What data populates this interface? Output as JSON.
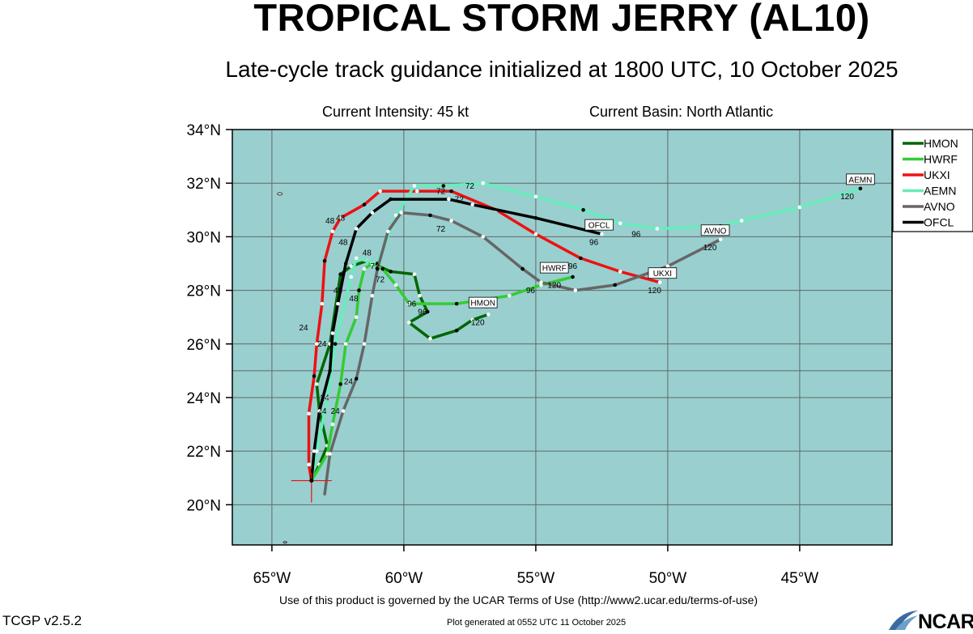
{
  "header": {
    "title": "TROPICAL STORM JERRY (AL10)",
    "subtitle": "Late-cycle track guidance initialized at 1800 UTC, 10 October 2025",
    "intensity": "Current Intensity: 45 kt",
    "basin": "Current Basin: North Atlantic"
  },
  "footer": {
    "terms": "Use of this product is governed by the UCAR Terms of Use (http://www2.ucar.edu/terms-of-use)",
    "generated": "Plot generated at 0552 UTC   11 October 2025",
    "version": "TCGP v2.5.2",
    "logo": "NCAR"
  },
  "colors": {
    "ocean": "#99cfcf",
    "land": "#ffffff",
    "grid": "#666666"
  },
  "chart_data": {
    "type": "line",
    "xlabel": "",
    "ylabel": "",
    "xlim": [
      -66.5,
      -41.5
    ],
    "ylim": [
      18.5,
      34
    ],
    "x_ticks": [
      -65,
      -60,
      -55,
      -50,
      -45
    ],
    "x_tick_labels": [
      "65°W",
      "60°W",
      "55°W",
      "50°W",
      "45°W"
    ],
    "y_ticks": [
      20,
      22,
      24,
      26,
      28,
      30,
      32,
      34
    ],
    "y_tick_labels": [
      "20°N",
      "22°N",
      "24°N",
      "26°N",
      "28°N",
      "30°N",
      "32°N",
      "34°N"
    ],
    "grid": true,
    "legend_position": "right",
    "storm_position": {
      "lon": -63.5,
      "lat": 20.9
    },
    "series": [
      {
        "name": "HMON",
        "color": "#006600",
        "points": [
          [
            -63.5,
            20.9
          ],
          [
            -63.2,
            21.5
          ],
          [
            -62.9,
            22.2
          ],
          [
            -63.2,
            23.5
          ],
          [
            -63.3,
            24.5
          ],
          [
            -62.8,
            26.0
          ],
          [
            -62.4,
            28.6
          ],
          [
            -62.0,
            28.9
          ],
          [
            -61.4,
            29.1
          ],
          [
            -60.5,
            28.7
          ],
          [
            -59.6,
            28.6
          ],
          [
            -59.4,
            27.8
          ],
          [
            -59.1,
            27.2
          ],
          [
            -59.8,
            26.8
          ],
          [
            -59.0,
            26.2
          ],
          [
            -58.0,
            26.5
          ],
          [
            -57.4,
            26.9
          ],
          [
            -56.8,
            27.1
          ]
        ],
        "labels": [
          {
            "text": "24",
            "lon": -63.0,
            "lat": 23.9
          },
          {
            "text": "48",
            "lon": -62.5,
            "lat": 27.9
          },
          {
            "text": "72",
            "lon": -60.9,
            "lat": 28.3
          },
          {
            "text": "96",
            "lon": -59.7,
            "lat": 27.4
          },
          {
            "text": "120",
            "lon": -57.2,
            "lat": 26.7
          }
        ],
        "box": {
          "text": "HMON",
          "lon": -57.0,
          "lat": 27.5
        }
      },
      {
        "name": "HWRF",
        "color": "#33cc33",
        "points": [
          [
            -63.5,
            20.9
          ],
          [
            -62.9,
            21.9
          ],
          [
            -62.7,
            23.0
          ],
          [
            -62.4,
            24.5
          ],
          [
            -62.2,
            26.0
          ],
          [
            -61.8,
            27.0
          ],
          [
            -61.7,
            28.0
          ],
          [
            -61.5,
            28.8
          ],
          [
            -61.2,
            29.0
          ],
          [
            -60.8,
            28.8
          ],
          [
            -60.3,
            28.2
          ],
          [
            -59.8,
            27.5
          ],
          [
            -58.0,
            27.5
          ],
          [
            -56.0,
            27.8
          ],
          [
            -54.8,
            28.2
          ],
          [
            -53.6,
            28.5
          ]
        ],
        "labels": [
          {
            "text": "24",
            "lon": -62.6,
            "lat": 23.4
          },
          {
            "text": "48",
            "lon": -61.9,
            "lat": 27.6
          },
          {
            "text": "72",
            "lon": -61.1,
            "lat": 28.8
          },
          {
            "text": "96",
            "lon": -59.3,
            "lat": 27.1
          },
          {
            "text": "120",
            "lon": -54.3,
            "lat": 28.1
          }
        ],
        "box": {
          "text": "HWRF",
          "lon": -54.3,
          "lat": 28.8
        }
      },
      {
        "name": "UKXI",
        "color": "#ee1111",
        "points": [
          [
            -63.5,
            20.9
          ],
          [
            -63.6,
            21.5
          ],
          [
            -63.6,
            23.4
          ],
          [
            -63.4,
            24.8
          ],
          [
            -63.3,
            26.0
          ],
          [
            -63.1,
            27.5
          ],
          [
            -63.0,
            29.1
          ],
          [
            -62.7,
            30.2
          ],
          [
            -62.4,
            30.7
          ],
          [
            -61.5,
            31.2
          ],
          [
            -60.9,
            31.7
          ],
          [
            -59.5,
            31.7
          ],
          [
            -58.2,
            31.7
          ],
          [
            -56.5,
            31.0
          ],
          [
            -55.0,
            30.1
          ],
          [
            -53.3,
            29.2
          ],
          [
            -51.8,
            28.7
          ],
          [
            -50.3,
            28.3
          ]
        ],
        "labels": [
          {
            "text": "24",
            "lon": -63.8,
            "lat": 26.5
          },
          {
            "text": "48",
            "lon": -62.8,
            "lat": 30.5
          },
          {
            "text": "72",
            "lon": -57.9,
            "lat": 31.3
          },
          {
            "text": "96",
            "lon": -53.6,
            "lat": 28.8
          },
          {
            "text": "120",
            "lon": -50.5,
            "lat": 27.9
          }
        ],
        "box": {
          "text": "UKXI",
          "lon": -50.2,
          "lat": 28.6
        }
      },
      {
        "name": "AEMN",
        "color": "#66eebb",
        "points": [
          [
            -63.5,
            20.9
          ],
          [
            -63.3,
            22.0
          ],
          [
            -62.9,
            24.0
          ],
          [
            -62.6,
            26.0
          ],
          [
            -62.0,
            28.5
          ],
          [
            -61.8,
            29.2
          ],
          [
            -61.0,
            29.0
          ],
          [
            -60.3,
            30.8
          ],
          [
            -59.6,
            31.9
          ],
          [
            -58.5,
            31.9
          ],
          [
            -57.0,
            32.0
          ],
          [
            -55.0,
            31.5
          ],
          [
            -53.2,
            31.0
          ],
          [
            -51.8,
            30.5
          ],
          [
            -50.4,
            30.3
          ],
          [
            -48.0,
            30.4
          ],
          [
            -47.2,
            30.6
          ],
          [
            -45.0,
            31.1
          ],
          [
            -42.7,
            31.8
          ]
        ],
        "labels": [
          {
            "text": "24",
            "lon": -63.1,
            "lat": 23.4
          },
          {
            "text": "48",
            "lon": -62.3,
            "lat": 29.7
          },
          {
            "text": "72",
            "lon": -57.5,
            "lat": 31.8
          },
          {
            "text": "96",
            "lon": -51.2,
            "lat": 30.0
          },
          {
            "text": "120",
            "lon": -43.2,
            "lat": 31.4
          }
        ],
        "box": {
          "text": "AEMN",
          "lon": -42.7,
          "lat": 32.1
        }
      },
      {
        "name": "AVNO",
        "color": "#666666",
        "points": [
          [
            -63.0,
            20.4
          ],
          [
            -62.8,
            21.9
          ],
          [
            -62.3,
            23.5
          ],
          [
            -61.8,
            24.7
          ],
          [
            -61.5,
            26.0
          ],
          [
            -61.2,
            27.8
          ],
          [
            -61.0,
            28.8
          ],
          [
            -60.6,
            30.2
          ],
          [
            -60.1,
            30.9
          ],
          [
            -59.0,
            30.8
          ],
          [
            -58.2,
            30.6
          ],
          [
            -57.0,
            30.0
          ],
          [
            -55.5,
            28.8
          ],
          [
            -54.8,
            28.3
          ],
          [
            -53.5,
            28.0
          ],
          [
            -52.0,
            28.2
          ],
          [
            -50.0,
            28.9
          ],
          [
            -48.0,
            29.9
          ]
        ],
        "labels": [
          {
            "text": "24",
            "lon": -62.1,
            "lat": 24.5
          },
          {
            "text": "48",
            "lon": -61.4,
            "lat": 29.3
          },
          {
            "text": "72",
            "lon": -58.6,
            "lat": 30.2
          },
          {
            "text": "96",
            "lon": -55.2,
            "lat": 27.9
          },
          {
            "text": "120",
            "lon": -48.4,
            "lat": 29.5
          }
        ],
        "box": {
          "text": "AVNO",
          "lon": -48.2,
          "lat": 30.2
        }
      },
      {
        "name": "OFCL",
        "color": "#000000",
        "points": [
          [
            -63.5,
            20.9
          ],
          [
            -63.4,
            22.0
          ],
          [
            -63.2,
            23.5
          ],
          [
            -62.8,
            25.0
          ],
          [
            -62.7,
            26.4
          ],
          [
            -62.5,
            27.5
          ],
          [
            -62.2,
            29.0
          ],
          [
            -61.8,
            30.3
          ],
          [
            -61.2,
            30.9
          ],
          [
            -60.5,
            31.4
          ],
          [
            -58.3,
            31.4
          ],
          [
            -57.4,
            31.2
          ],
          [
            -55.0,
            30.7
          ],
          [
            -52.5,
            30.1
          ]
        ],
        "labels": [
          {
            "text": "24",
            "lon": -63.1,
            "lat": 25.9
          },
          {
            "text": "48",
            "lon": -62.4,
            "lat": 30.6
          },
          {
            "text": "72",
            "lon": -58.6,
            "lat": 31.6
          },
          {
            "text": "96",
            "lon": -52.8,
            "lat": 29.7
          }
        ],
        "box": {
          "text": "OFCL",
          "lon": -52.6,
          "lat": 30.4
        }
      }
    ]
  }
}
